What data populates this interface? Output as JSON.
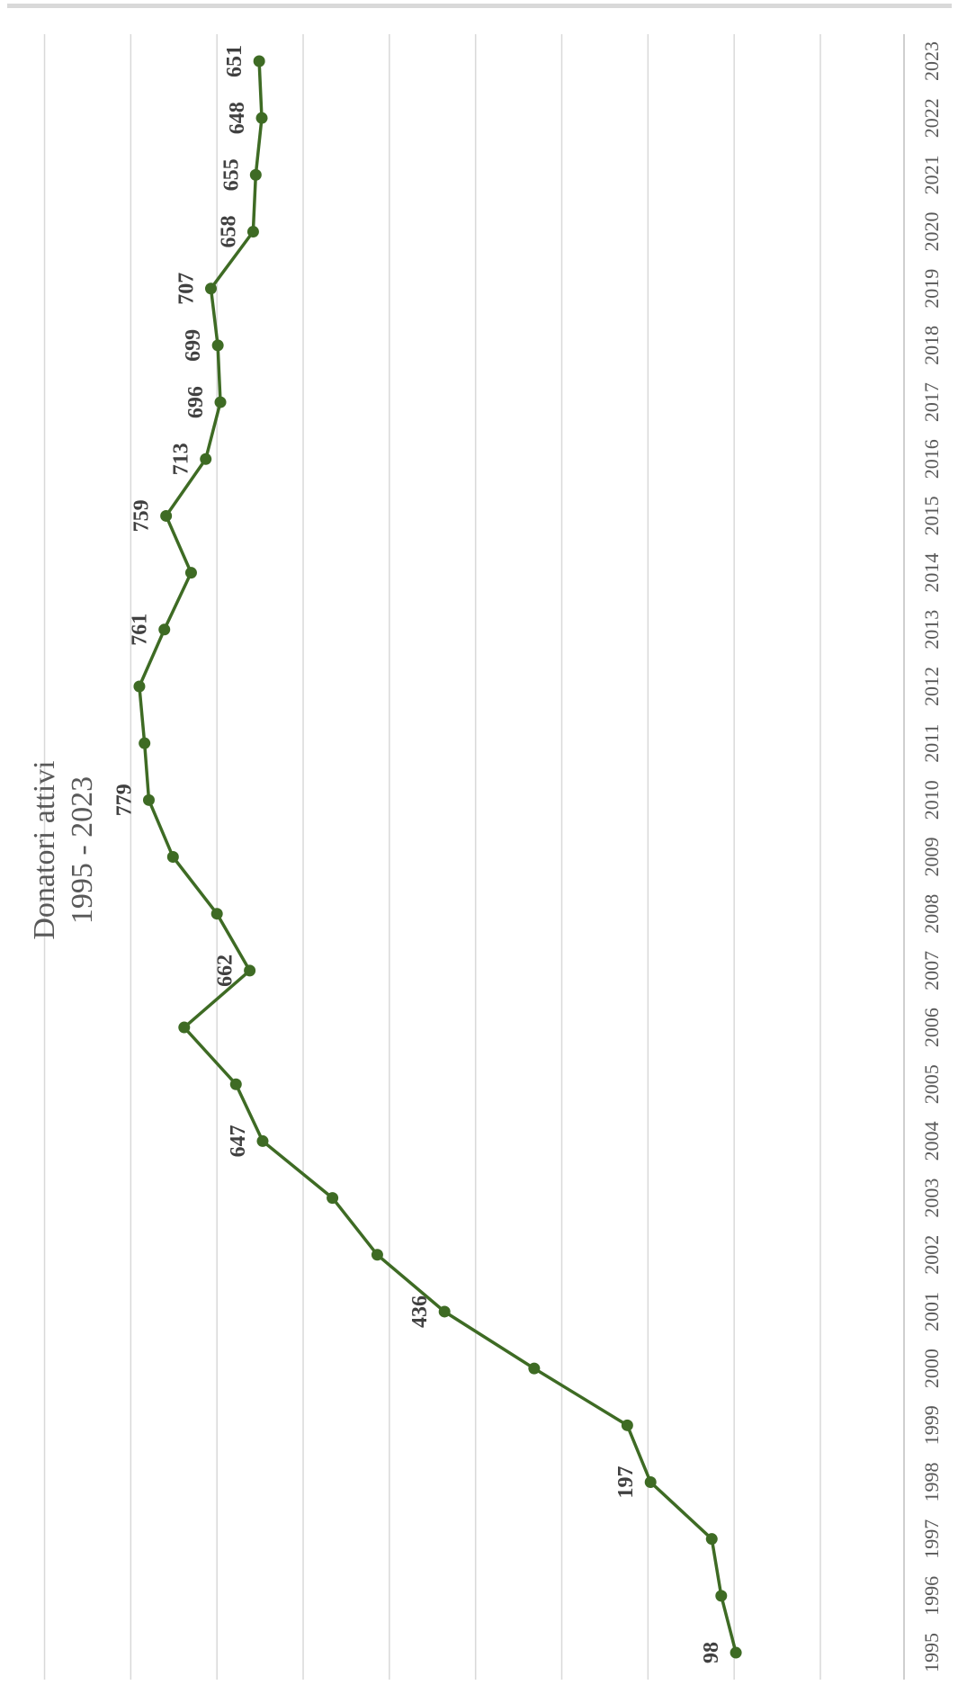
{
  "chart_data": {
    "type": "line",
    "title": "Donatori attivi",
    "subtitle": "1995 - 2023",
    "xlabel": "",
    "ylabel": "",
    "orientation": "rotated-90",
    "grid": true,
    "legend": "none",
    "ylim": [
      0,
      900
    ],
    "x": [
      "1995",
      "1996",
      "1997",
      "1998",
      "1999",
      "2000",
      "2001",
      "2002",
      "2003",
      "2004",
      "2005",
      "2006",
      "2007",
      "2008",
      "2009",
      "2010",
      "2011",
      "2012",
      "2013",
      "2014",
      "2015",
      "2016",
      "2017",
      "2018",
      "2019",
      "2020",
      "2021",
      "2022",
      "2023"
    ],
    "series": [
      {
        "name": "",
        "color": "#3e6b24",
        "values": [
          98,
          115,
          126,
          197,
          224,
          332,
          436,
          514,
          566,
          647,
          678,
          738,
          662,
          700,
          751,
          779,
          784,
          790,
          761,
          730,
          759,
          713,
          696,
          699,
          707,
          658,
          655,
          648,
          651
        ]
      }
    ],
    "data_labels": [
      {
        "index": 0,
        "text": "98"
      },
      {
        "index": 3,
        "text": "197"
      },
      {
        "index": 6,
        "text": "436"
      },
      {
        "index": 9,
        "text": "647"
      },
      {
        "index": 12,
        "text": "662"
      },
      {
        "index": 15,
        "text": "779"
      },
      {
        "index": 18,
        "text": "761"
      },
      {
        "index": 20,
        "text": "759"
      },
      {
        "index": 21,
        "text": "713"
      },
      {
        "index": 22,
        "text": "696"
      },
      {
        "index": 23,
        "text": "699"
      },
      {
        "index": 24,
        "text": "707"
      },
      {
        "index": 25,
        "text": "658"
      },
      {
        "index": 26,
        "text": "655"
      },
      {
        "index": 27,
        "text": "648"
      },
      {
        "index": 28,
        "text": "651"
      }
    ],
    "colors": {
      "line": "#3e6b24",
      "marker": "#3e6b24",
      "grid": "#d9d9d9",
      "axis": "#bfbfbf",
      "top_border": "#d9d9d9"
    }
  }
}
